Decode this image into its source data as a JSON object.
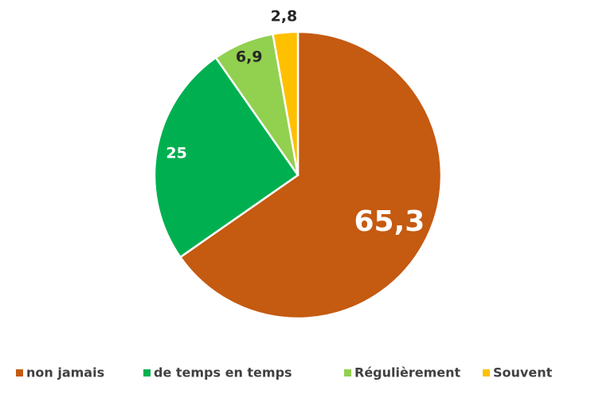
{
  "chart_data": {
    "type": "pie",
    "categories": [
      "non jamais",
      "de temps en temps",
      "Régulièrement",
      "Souvent"
    ],
    "values": [
      65.3,
      25,
      6.9,
      2.8
    ],
    "value_labels": [
      "65,3",
      "25",
      "6,9",
      "2,8"
    ],
    "colors": [
      "#c55a11",
      "#00b050",
      "#92d050",
      "#ffc000"
    ],
    "legend": "bottom"
  }
}
